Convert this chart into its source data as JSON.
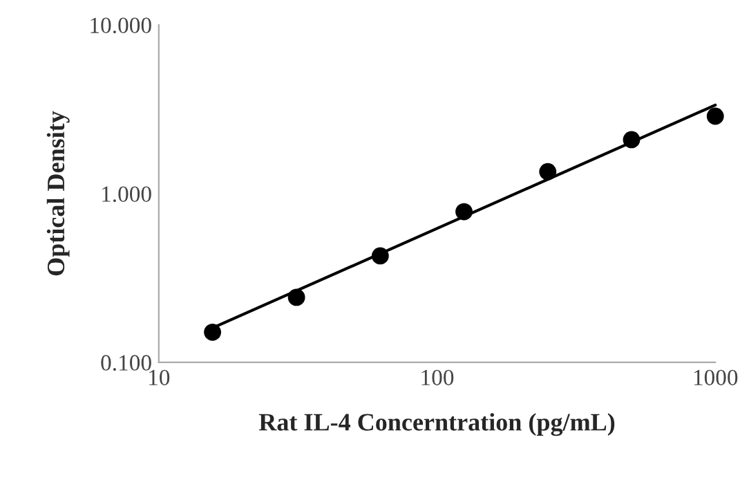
{
  "chart_data": {
    "type": "scatter",
    "xlabel": "Rat IL-4 Concerntration (pg/mL)",
    "ylabel": "Optical Density",
    "log": "xy",
    "marker": "circle",
    "grid": false,
    "series": [
      {
        "color": "#000000",
        "x": [
          15.6,
          31.25,
          62.5,
          125,
          250,
          500,
          1000
        ],
        "values": [
          0.151,
          0.243,
          0.428,
          0.782,
          1.35,
          2.09,
          2.88
        ]
      },
      {
        "type": "line",
        "marker": "none",
        "color": "#000000",
        "x": [
          15.6,
          1000
        ],
        "values": [
          0.16,
          3.35
        ]
      }
    ],
    "xlim": [
      10,
      1000
    ],
    "xticks": [
      10,
      100,
      1000
    ],
    "ylim": [
      0.1,
      10
    ],
    "yticks": [
      {
        "value": 0.1,
        "label": "0.100"
      },
      {
        "value": 1,
        "label": "1.000"
      },
      {
        "value": 10,
        "label": "10.000"
      }
    ]
  }
}
